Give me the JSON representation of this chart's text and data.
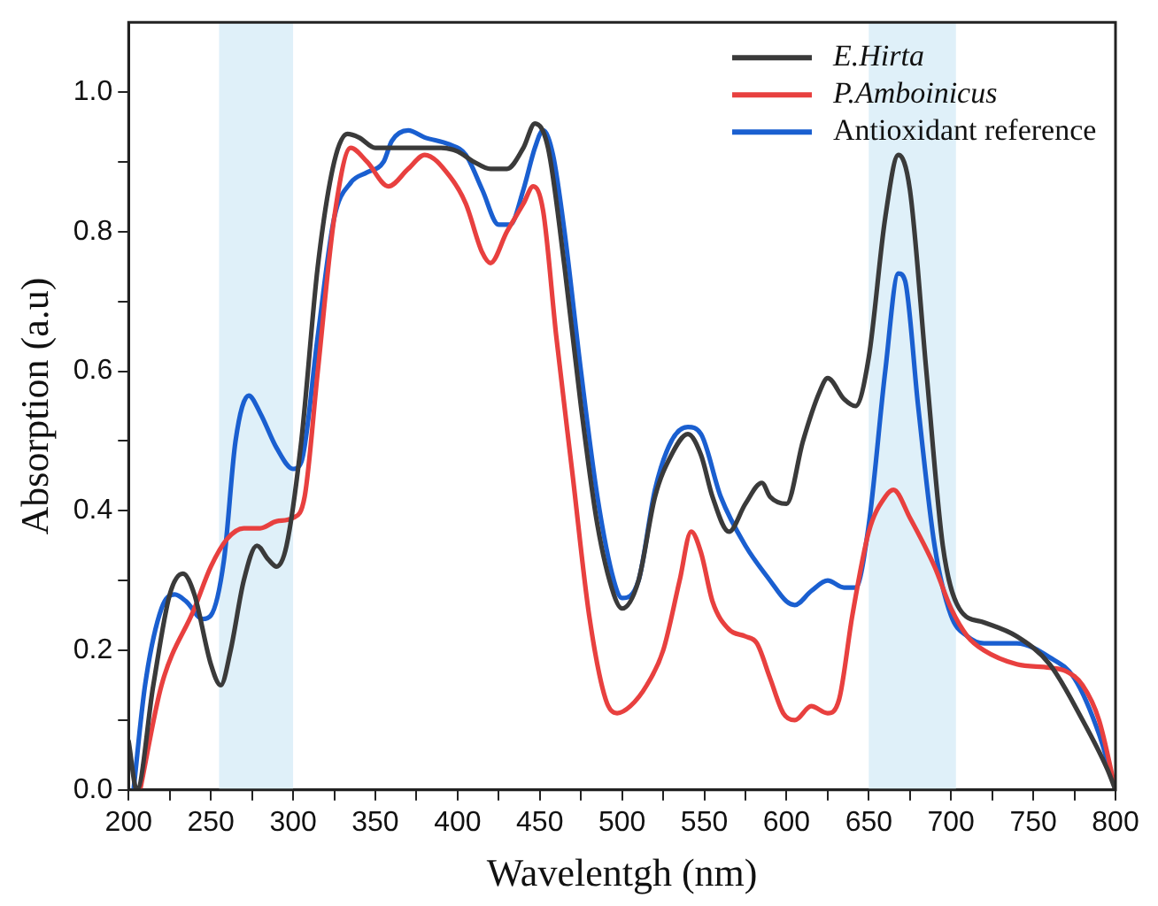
{
  "chart_data": {
    "type": "line",
    "xlabel": "Wavelentgh (nm)",
    "ylabel": "Absorption (a.u)",
    "xlim": [
      200,
      800
    ],
    "ylim": [
      0,
      1.1
    ],
    "xticks": [
      200,
      {
        "value": 225,
        "label": null
      },
      250,
      {
        "value": 275,
        "label": null
      },
      300,
      {
        "value": 325,
        "label": null
      },
      350,
      {
        "value": 375,
        "label": null
      },
      400,
      {
        "value": 425,
        "label": null
      },
      450,
      {
        "value": 475,
        "label": null
      },
      500,
      {
        "value": 525,
        "label": null
      },
      550,
      {
        "value": 575,
        "label": null
      },
      600,
      {
        "value": 625,
        "label": null
      },
      650,
      {
        "value": 675,
        "label": null
      },
      700,
      {
        "value": 725,
        "label": null
      },
      750,
      {
        "value": 775,
        "label": null
      },
      800
    ],
    "yticks": [
      {
        "value": 0,
        "label": "0.0"
      },
      {
        "value": 0.1,
        "label": null
      },
      {
        "value": 0.2,
        "label": "0.2"
      },
      {
        "value": 0.3,
        "label": null
      },
      {
        "value": 0.4,
        "label": "0.4"
      },
      {
        "value": 0.5,
        "label": null
      },
      {
        "value": 0.6,
        "label": "0.6"
      },
      {
        "value": 0.7,
        "label": null
      },
      {
        "value": 0.8,
        "label": "0.8"
      },
      {
        "value": 0.9,
        "label": null
      },
      {
        "value": 1.0,
        "label": "1.0"
      }
    ],
    "grid": false,
    "legend": "top right",
    "marker": "none",
    "line_style": "solid",
    "bands": [
      {
        "axis": "x",
        "from": 255,
        "to": 300,
        "color": "#dff0f9"
      },
      {
        "axis": "x",
        "from": 650,
        "to": 703,
        "color": "#dff0f9"
      }
    ],
    "series": [
      {
        "name": "E.Hirta",
        "color": "#3a3a3a",
        "x": [
          200,
          205,
          215,
          225,
          233,
          240,
          250,
          256,
          262,
          270,
          278,
          285,
          290,
          296,
          305,
          315,
          325,
          333,
          340,
          350,
          370,
          390,
          400,
          410,
          420,
          430,
          440,
          447,
          455,
          465,
          475,
          485,
          495,
          500,
          510,
          520,
          530,
          540,
          548,
          555,
          565,
          575,
          585,
          590,
          600,
          610,
          620,
          625,
          635,
          642,
          650,
          660,
          668,
          675,
          685,
          695,
          705,
          720,
          740,
          760,
          780,
          795,
          800
        ],
        "values": [
          0.07,
          0,
          0.15,
          0.28,
          0.31,
          0.28,
          0.18,
          0.15,
          0.2,
          0.3,
          0.35,
          0.33,
          0.32,
          0.35,
          0.5,
          0.75,
          0.9,
          0.94,
          0.935,
          0.92,
          0.92,
          0.92,
          0.915,
          0.9,
          0.89,
          0.89,
          0.92,
          0.955,
          0.92,
          0.75,
          0.55,
          0.38,
          0.28,
          0.26,
          0.3,
          0.42,
          0.48,
          0.51,
          0.48,
          0.42,
          0.37,
          0.41,
          0.44,
          0.42,
          0.41,
          0.5,
          0.57,
          0.59,
          0.56,
          0.55,
          0.62,
          0.82,
          0.91,
          0.86,
          0.6,
          0.35,
          0.26,
          0.24,
          0.22,
          0.18,
          0.1,
          0.03,
          0
        ]
      },
      {
        "name": "P.Amboinicus",
        "color": "#e8403f",
        "x": [
          207,
          220,
          240,
          250,
          260,
          270,
          280,
          290,
          300,
          307,
          315,
          325,
          335,
          345,
          358,
          370,
          380,
          395,
          405,
          415,
          420,
          430,
          440,
          446,
          452,
          460,
          470,
          480,
          490,
          497,
          505,
          515,
          525,
          535,
          542,
          548,
          555,
          565,
          575,
          582,
          590,
          598,
          605,
          615,
          625,
          632,
          640,
          650,
          660,
          665,
          675,
          690,
          700,
          710,
          720,
          740,
          760,
          770,
          780,
          790,
          800
        ],
        "values": [
          0,
          0.15,
          0.26,
          0.32,
          0.36,
          0.375,
          0.375,
          0.385,
          0.39,
          0.42,
          0.6,
          0.82,
          0.92,
          0.9,
          0.865,
          0.89,
          0.91,
          0.88,
          0.84,
          0.77,
          0.755,
          0.8,
          0.84,
          0.865,
          0.83,
          0.65,
          0.45,
          0.25,
          0.13,
          0.11,
          0.12,
          0.15,
          0.2,
          0.3,
          0.37,
          0.34,
          0.27,
          0.23,
          0.22,
          0.21,
          0.16,
          0.11,
          0.1,
          0.12,
          0.11,
          0.13,
          0.25,
          0.37,
          0.42,
          0.43,
          0.39,
          0.32,
          0.26,
          0.22,
          0.2,
          0.18,
          0.175,
          0.17,
          0.15,
          0.1,
          0
        ]
      },
      {
        "name": "Antioxidant reference",
        "color": "#1a5fd0",
        "x": [
          203,
          210,
          220,
          228,
          235,
          245,
          250,
          258,
          265,
          273,
          280,
          290,
          300,
          305,
          315,
          325,
          335,
          345,
          355,
          360,
          370,
          380,
          395,
          405,
          415,
          425,
          432,
          440,
          447,
          452,
          458,
          465,
          475,
          485,
          495,
          500,
          510,
          520,
          530,
          540,
          548,
          560,
          575,
          590,
          600,
          605,
          615,
          625,
          635,
          642,
          650,
          660,
          668,
          672,
          680,
          690,
          700,
          710,
          720,
          740,
          760,
          775,
          790,
          800
        ],
        "values": [
          0,
          0.15,
          0.26,
          0.28,
          0.27,
          0.245,
          0.25,
          0.33,
          0.5,
          0.565,
          0.54,
          0.49,
          0.46,
          0.47,
          0.65,
          0.82,
          0.87,
          0.885,
          0.9,
          0.93,
          0.945,
          0.935,
          0.925,
          0.91,
          0.86,
          0.81,
          0.81,
          0.86,
          0.92,
          0.945,
          0.91,
          0.8,
          0.6,
          0.42,
          0.3,
          0.275,
          0.3,
          0.43,
          0.5,
          0.52,
          0.51,
          0.42,
          0.35,
          0.3,
          0.27,
          0.265,
          0.285,
          0.3,
          0.29,
          0.29,
          0.38,
          0.6,
          0.74,
          0.73,
          0.55,
          0.35,
          0.25,
          0.22,
          0.21,
          0.21,
          0.19,
          0.16,
          0.08,
          0
        ]
      }
    ]
  }
}
